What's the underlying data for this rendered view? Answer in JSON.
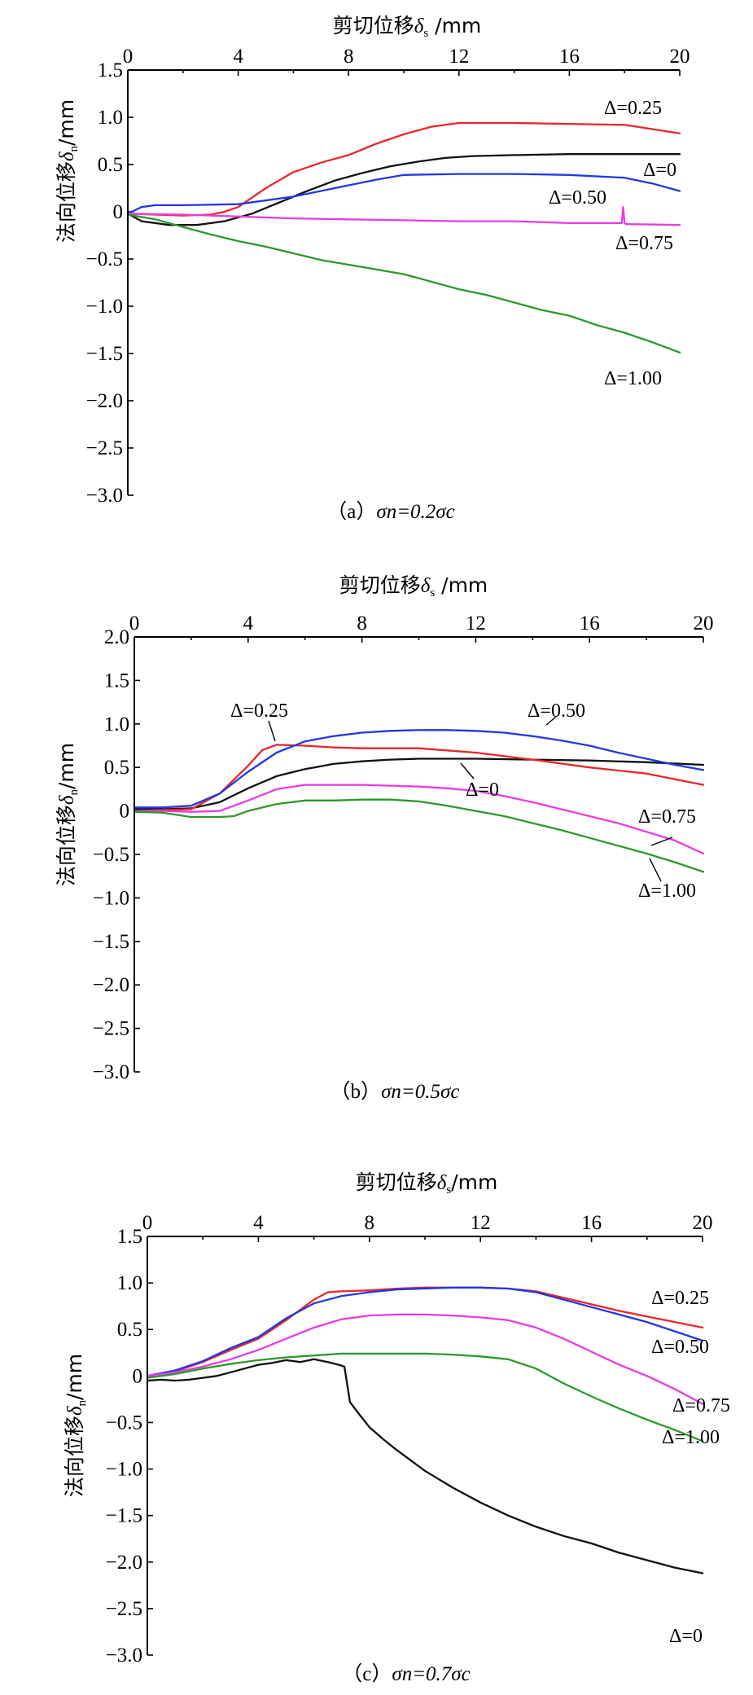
{
  "colors": {
    "0": "#111111",
    "0.25": "#e8262a",
    "0.50": "#2338e0",
    "0.75": "#e83ce0",
    "1.00": "#2a9a2a"
  },
  "chart_data": [
    {
      "id": "a",
      "type": "line",
      "title": "(a) σn=0.2σc",
      "caption_prefix": "（a）",
      "caption_formula": "σn=0.2σc",
      "xlabel": "剪切位移δs/mm",
      "ylabel": "法向位移δn/mm",
      "xlim": [
        0,
        20
      ],
      "ylim": [
        -3.0,
        1.5
      ],
      "x_ticks": [
        "0",
        "4",
        "8",
        "12",
        "16",
        "20"
      ],
      "y_ticks": [
        "1.5",
        "1.0",
        "0.5",
        "0",
        "−0.5",
        "−1.0",
        "−1.5",
        "−2.0",
        "−2.5",
        "−3.0"
      ],
      "series": [
        {
          "name": "Δ=0",
          "key": "0",
          "label": "Δ=0",
          "x": [
            0,
            0.5,
            1.5,
            2.5,
            3.5,
            4.5,
            5.5,
            6.5,
            7.5,
            8.5,
            9.5,
            10.5,
            11.5,
            12.5,
            14,
            16,
            18,
            20
          ],
          "y": [
            -0.02,
            -0.1,
            -0.14,
            -0.14,
            -0.1,
            -0.02,
            0.1,
            0.22,
            0.33,
            0.41,
            0.48,
            0.53,
            0.57,
            0.59,
            0.6,
            0.61,
            0.61,
            0.61
          ]
        },
        {
          "name": "Δ=0.25",
          "key": "0.25",
          "label": "Δ=0.25",
          "x": [
            0,
            1,
            2,
            3,
            3.5,
            4,
            5,
            6,
            7,
            8,
            9,
            10,
            11,
            12,
            14,
            16,
            18,
            20
          ],
          "y": [
            -0.02,
            -0.03,
            -0.04,
            -0.03,
            0.0,
            0.05,
            0.25,
            0.42,
            0.52,
            0.6,
            0.72,
            0.82,
            0.9,
            0.94,
            0.94,
            0.93,
            0.92,
            0.83
          ]
        },
        {
          "name": "Δ=0.50",
          "key": "0.50",
          "label": "Δ=0.50",
          "x": [
            0,
            0.5,
            1,
            2,
            4,
            6,
            7,
            8,
            9,
            10,
            12,
            14,
            16,
            18,
            19,
            20
          ],
          "y": [
            -0.02,
            0.05,
            0.07,
            0.07,
            0.08,
            0.16,
            0.22,
            0.28,
            0.34,
            0.39,
            0.4,
            0.4,
            0.39,
            0.36,
            0.3,
            0.22
          ]
        },
        {
          "name": "Δ=0.75",
          "key": "0.75",
          "label": "Δ=0.75",
          "x": [
            0,
            2,
            4,
            6,
            8,
            10,
            12,
            14,
            16,
            17.9,
            17.95,
            18.0,
            18.05,
            18.1,
            20
          ],
          "y": [
            -0.02,
            -0.03,
            -0.05,
            -0.07,
            -0.08,
            -0.09,
            -0.1,
            -0.1,
            -0.12,
            -0.12,
            0.05,
            -0.12,
            -0.13,
            -0.13,
            -0.14
          ]
        },
        {
          "name": "Δ=1.00",
          "key": "1.00",
          "label": "Δ=1.00",
          "x": [
            0,
            1,
            2,
            3,
            4,
            5,
            6,
            7,
            8,
            9,
            10,
            11,
            12,
            13,
            14,
            15,
            16,
            17,
            18,
            19,
            20
          ],
          "y": [
            -0.03,
            -0.08,
            -0.16,
            -0.24,
            -0.31,
            -0.37,
            -0.44,
            -0.51,
            -0.56,
            -0.61,
            -0.66,
            -0.74,
            -0.82,
            -0.88,
            -0.96,
            -1.04,
            -1.1,
            -1.2,
            -1.28,
            -1.38,
            -1.49
          ]
        }
      ]
    },
    {
      "id": "b",
      "type": "line",
      "title": "(b) σn=0.5σc",
      "caption_prefix": "（b）",
      "caption_formula": "σn=0.5σc",
      "xlabel": "剪切位移δs/mm",
      "ylabel": "法向位移δn/mm",
      "xlim": [
        0,
        20
      ],
      "ylim": [
        -3.0,
        2.0
      ],
      "x_ticks": [
        "0",
        "4",
        "8",
        "12",
        "16",
        "20"
      ],
      "y_ticks": [
        "2.0",
        "1.5",
        "1.0",
        "0.5",
        "0",
        "−0.5",
        "−1.0",
        "−1.5",
        "−2.0",
        "−2.5",
        "−3.0"
      ],
      "series": [
        {
          "name": "Δ=0",
          "key": "0",
          "label": "Δ=0",
          "x": [
            0,
            1,
            2,
            3,
            4,
            5,
            6,
            7,
            8,
            9,
            10,
            11,
            12,
            14,
            16,
            18,
            20
          ],
          "y": [
            0.02,
            0.02,
            0.03,
            0.1,
            0.26,
            0.4,
            0.48,
            0.54,
            0.57,
            0.59,
            0.6,
            0.6,
            0.6,
            0.59,
            0.58,
            0.56,
            0.53
          ]
        },
        {
          "name": "Δ=0.25",
          "key": "0.25",
          "label": "Δ=0.25",
          "x": [
            0,
            1,
            2,
            3,
            4,
            4.5,
            5,
            6,
            7,
            8,
            10,
            12,
            14,
            16,
            18,
            20
          ],
          "y": [
            0.0,
            0.01,
            0.02,
            0.2,
            0.52,
            0.7,
            0.76,
            0.75,
            0.73,
            0.72,
            0.72,
            0.67,
            0.59,
            0.5,
            0.43,
            0.3
          ]
        },
        {
          "name": "Δ=0.50",
          "key": "0.50",
          "label": "Δ=0.50",
          "x": [
            0,
            1,
            2,
            3,
            4,
            5,
            6,
            7,
            8,
            9,
            10,
            11,
            12,
            13,
            14,
            15,
            16,
            17,
            18,
            19,
            20
          ],
          "y": [
            0.04,
            0.04,
            0.06,
            0.2,
            0.45,
            0.67,
            0.8,
            0.86,
            0.9,
            0.92,
            0.93,
            0.93,
            0.92,
            0.9,
            0.86,
            0.81,
            0.75,
            0.67,
            0.6,
            0.53,
            0.47
          ]
        },
        {
          "name": "Δ=0.75",
          "key": "0.75",
          "label": "Δ=0.75",
          "x": [
            0,
            1,
            2,
            3,
            4,
            5,
            6,
            7,
            8,
            9,
            10,
            11,
            12,
            13,
            14,
            15,
            16,
            17,
            18,
            19,
            20
          ],
          "y": [
            0.0,
            0.0,
            -0.01,
            0.0,
            0.12,
            0.25,
            0.3,
            0.3,
            0.3,
            0.29,
            0.28,
            0.26,
            0.23,
            0.17,
            0.1,
            0.02,
            -0.06,
            -0.14,
            -0.24,
            -0.34,
            -0.49
          ]
        },
        {
          "name": "Δ=1.00",
          "key": "1.00",
          "label": "Δ=1.00",
          "x": [
            0,
            1,
            2,
            3,
            3.5,
            4,
            5,
            6,
            7,
            8,
            9,
            10,
            11,
            12,
            13,
            14,
            15,
            16,
            17,
            18,
            19,
            20
          ],
          "y": [
            -0.01,
            -0.02,
            -0.07,
            -0.07,
            -0.06,
            0.0,
            0.08,
            0.12,
            0.12,
            0.13,
            0.13,
            0.11,
            0.06,
            0.0,
            -0.06,
            -0.14,
            -0.22,
            -0.31,
            -0.4,
            -0.49,
            -0.59,
            -0.7
          ]
        }
      ],
      "labels_in_plot": [
        {
          "text": "Δ=0.25"
        },
        {
          "text": "Δ=0.50"
        },
        {
          "text": "Δ=0"
        },
        {
          "text": "Δ=0.75"
        },
        {
          "text": "Δ=1.00"
        }
      ]
    },
    {
      "id": "c",
      "type": "line",
      "title": "(c) σn=0.7σc",
      "caption_prefix": "（c）",
      "caption_formula": "σn=0.7σc",
      "xlabel": "剪切位移δs/mm",
      "ylabel": "法向位移δn/mm",
      "xlim": [
        0,
        20
      ],
      "ylim": [
        -3.0,
        1.5
      ],
      "x_ticks": [
        "0",
        "4",
        "8",
        "12",
        "16",
        "20"
      ],
      "y_ticks": [
        "1.5",
        "1.0",
        "0.5",
        "0",
        "−0.5",
        "−1.0",
        "−1.5",
        "−2.0",
        "−2.5",
        "−3.0"
      ],
      "series": [
        {
          "name": "Δ=0",
          "key": "0",
          "label": "Δ=0",
          "x": [
            0,
            0.5,
            1,
            1.5,
            2,
            2.5,
            3,
            3.5,
            4,
            4.5,
            5,
            5.5,
            6,
            6.5,
            6.9,
            7.1,
            7.3,
            7.6,
            8,
            8.5,
            9,
            10,
            11,
            12,
            13,
            14,
            15,
            16,
            17,
            18,
            19,
            20
          ],
          "y": [
            -0.05,
            -0.04,
            -0.05,
            -0.04,
            -0.02,
            0.0,
            0.04,
            0.08,
            0.12,
            0.14,
            0.17,
            0.15,
            0.18,
            0.15,
            0.12,
            0.1,
            -0.28,
            -0.4,
            -0.55,
            -0.68,
            -0.8,
            -1.02,
            -1.2,
            -1.36,
            -1.5,
            -1.62,
            -1.72,
            -1.8,
            -1.9,
            -1.98,
            -2.06,
            -2.12
          ]
        },
        {
          "name": "Δ=0.25",
          "key": "0.25",
          "label": "Δ=0.25",
          "x": [
            0,
            1,
            2,
            3,
            4,
            5,
            6,
            6.5,
            7,
            8,
            9,
            10,
            11,
            12,
            13,
            14,
            15,
            16,
            17,
            18,
            19,
            20
          ],
          "y": [
            0.0,
            0.05,
            0.15,
            0.28,
            0.4,
            0.6,
            0.82,
            0.9,
            0.91,
            0.92,
            0.94,
            0.95,
            0.95,
            0.95,
            0.94,
            0.91,
            0.84,
            0.77,
            0.7,
            0.64,
            0.58,
            0.52
          ]
        },
        {
          "name": "Δ=0.50",
          "key": "0.50",
          "label": "Δ=0.50",
          "x": [
            0,
            1,
            2,
            3,
            4,
            5,
            6,
            7,
            8,
            9,
            10,
            11,
            12,
            13,
            14,
            15,
            16,
            17,
            18,
            19,
            20
          ],
          "y": [
            0.0,
            0.06,
            0.16,
            0.3,
            0.42,
            0.62,
            0.78,
            0.86,
            0.9,
            0.93,
            0.94,
            0.95,
            0.95,
            0.94,
            0.9,
            0.82,
            0.74,
            0.66,
            0.58,
            0.48,
            0.38
          ]
        },
        {
          "name": "Δ=0.75",
          "key": "0.75",
          "label": "Δ=0.75",
          "x": [
            0,
            1,
            2,
            3,
            4,
            5,
            6,
            7,
            8,
            9,
            10,
            11,
            12,
            13,
            14,
            15,
            16,
            17,
            18,
            19,
            20
          ],
          "y": [
            0.0,
            0.04,
            0.1,
            0.18,
            0.28,
            0.4,
            0.52,
            0.61,
            0.65,
            0.66,
            0.66,
            0.65,
            0.63,
            0.6,
            0.52,
            0.4,
            0.26,
            0.12,
            0.0,
            -0.14,
            -0.3
          ]
        },
        {
          "name": "Δ=1.00",
          "key": "1.00",
          "label": "Δ=1.00",
          "x": [
            0,
            1,
            2,
            3,
            4,
            5,
            6,
            7,
            8,
            9,
            10,
            11,
            12,
            13,
            14,
            15,
            16,
            17,
            18,
            19,
            20
          ],
          "y": [
            -0.02,
            0.02,
            0.08,
            0.13,
            0.17,
            0.2,
            0.22,
            0.24,
            0.24,
            0.24,
            0.24,
            0.23,
            0.21,
            0.18,
            0.08,
            -0.08,
            -0.22,
            -0.35,
            -0.47,
            -0.58,
            -0.7
          ]
        }
      ]
    }
  ]
}
